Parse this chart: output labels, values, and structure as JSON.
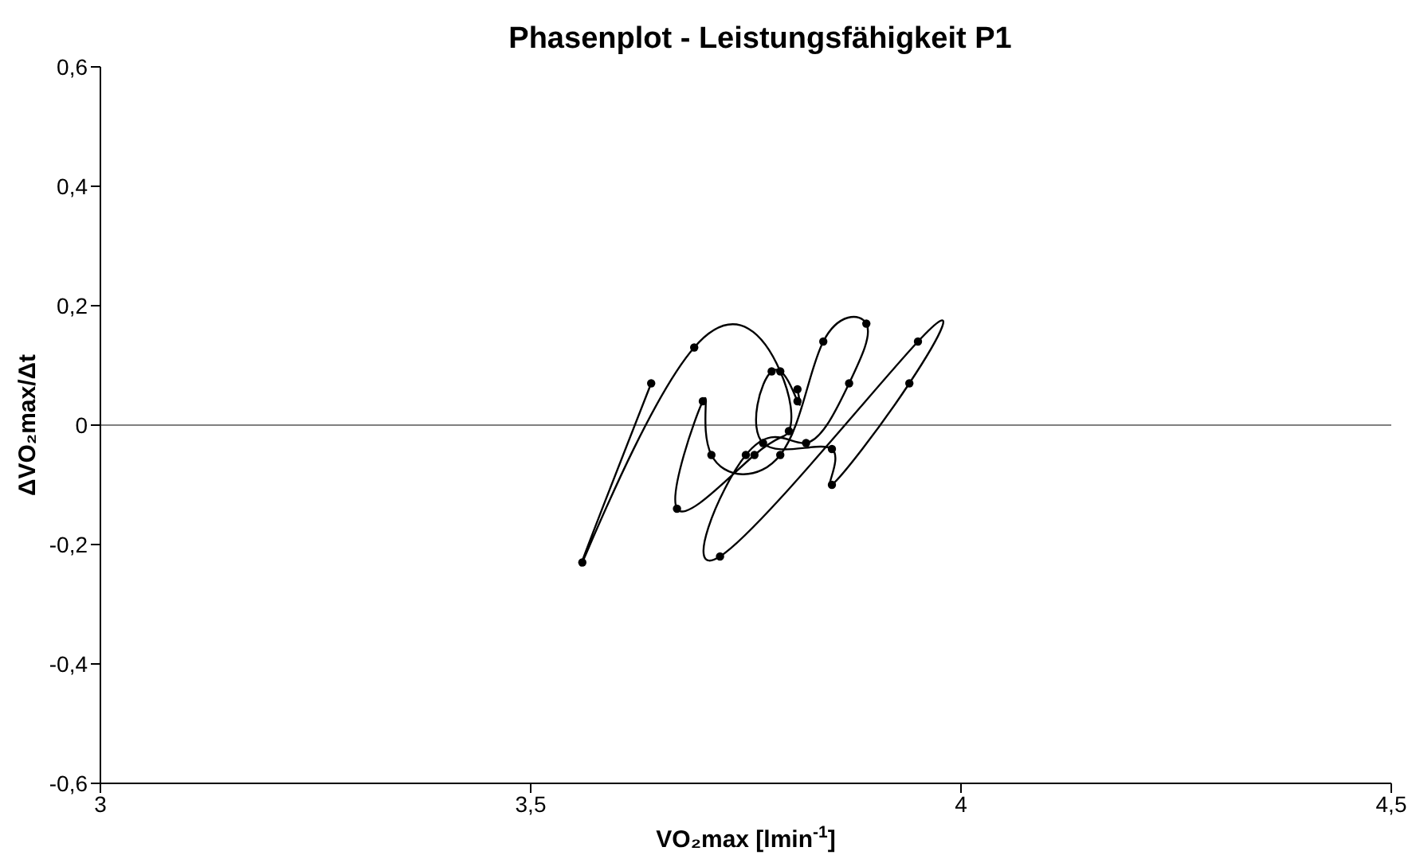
{
  "chart_data": {
    "type": "line",
    "title": "Phasenplot - Leistungsfähigkeit P1",
    "xlabel": "VO₂max [lmin$^{-1}$]",
    "ylabel": "ΔVO₂max/Δt",
    "x": [
      3.64,
      3.56,
      3.69,
      3.79,
      3.8,
      3.76,
      3.67,
      3.7,
      3.71,
      3.79,
      3.84,
      3.89,
      3.87,
      3.82,
      3.75,
      3.72,
      3.95,
      3.94,
      3.85,
      3.85,
      3.77,
      3.78,
      3.81,
      3.81
    ],
    "series": [
      {
        "color": "#000000",
        "values": [
          0.07,
          -0.23,
          0.13,
          0.09,
          -0.01,
          -0.05,
          -0.14,
          0.04,
          -0.05,
          -0.05,
          0.14,
          0.17,
          0.07,
          -0.03,
          -0.05,
          -0.22,
          0.14,
          0.07,
          -0.1,
          -0.04,
          -0.03,
          0.09,
          0.04,
          0.06
        ]
      }
    ],
    "xlim": [
      3,
      4.5
    ],
    "xticks": [
      3,
      {
        "value": 3.5,
        "label": "3,5"
      },
      4,
      {
        "value": 4.5,
        "label": "4,5"
      }
    ],
    "ylim": [
      -0.6,
      0.6
    ],
    "yticks": [
      {
        "value": -0.6,
        "label": "-0,6"
      },
      {
        "value": -0.4,
        "label": "-0,4"
      },
      {
        "value": -0.2,
        "label": "-0,2"
      },
      0,
      {
        "value": 0.2,
        "label": "0,2"
      },
      {
        "value": 0.4,
        "label": "0,4"
      },
      {
        "value": 0.6,
        "label": "0,6"
      }
    ],
    "ref_lines": [
      {
        "axis": "y",
        "value": 0,
        "color": "#808080"
      }
    ],
    "grid": false,
    "legend": false,
    "marker": "circle",
    "line_style": "solid"
  }
}
